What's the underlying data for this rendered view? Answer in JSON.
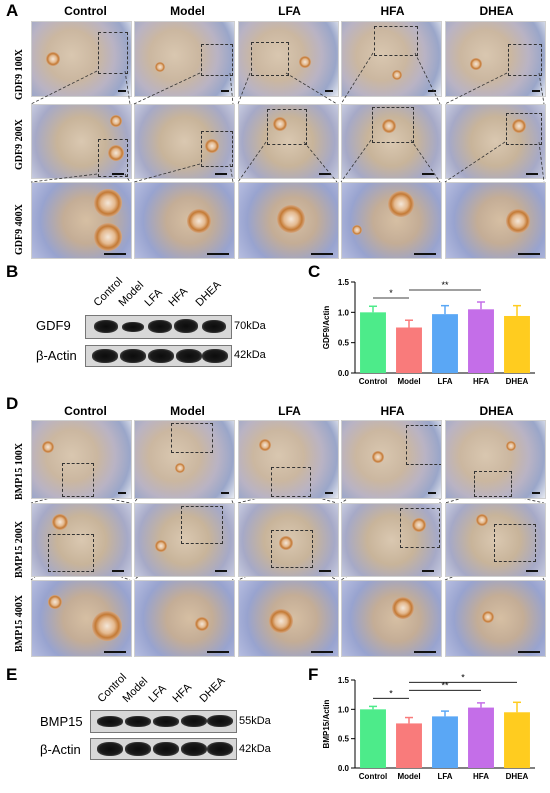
{
  "panels": {
    "A": "A",
    "B": "B",
    "C": "C",
    "D": "D",
    "E": "E",
    "F": "F"
  },
  "groups": [
    "Control",
    "Model",
    "LFA",
    "HFA",
    "DHEA"
  ],
  "panel_a": {
    "rows": [
      "GDF9 100X",
      "GDF9 200X",
      "GDF9 400X"
    ]
  },
  "panel_d": {
    "rows": [
      "BMP15 100X",
      "BMP15 200X",
      "BMP15 400X"
    ]
  },
  "panel_b": {
    "lanes": [
      "Control",
      "Model",
      "LFA",
      "HFA",
      "DHEA"
    ],
    "proteins": [
      "GDF9",
      "β-Actin"
    ],
    "sizes": [
      "70kDa",
      "42kDa"
    ]
  },
  "panel_e": {
    "lanes": [
      "Control",
      "Model",
      "LFA",
      "HFA",
      "DHEA"
    ],
    "proteins": [
      "BMP15",
      "β-Actin"
    ],
    "sizes": [
      "55kDa",
      "42kDa"
    ]
  },
  "chart_data": [
    {
      "id": "C",
      "type": "bar",
      "categories": [
        "Control",
        "Model",
        "LFA",
        "HFA",
        "DHEA"
      ],
      "values": [
        1.0,
        0.75,
        0.97,
        1.05,
        0.94
      ],
      "errors": [
        0.1,
        0.12,
        0.14,
        0.12,
        0.17
      ],
      "colors": [
        "#4deb8a",
        "#f97b7b",
        "#5aa7f5",
        "#c46ee8",
        "#ffcc1f"
      ],
      "ylabel": "GDF9/Actin",
      "ylim": [
        0.0,
        1.5
      ],
      "yticks": [
        "0.0",
        "0.5",
        "1.0",
        "1.5"
      ],
      "significance": [
        {
          "from": "Control",
          "to": "Model",
          "label": "*"
        },
        {
          "from": "Model",
          "to": "HFA",
          "label": "**"
        }
      ]
    },
    {
      "id": "F",
      "type": "bar",
      "categories": [
        "Control",
        "Model",
        "LFA",
        "HFA",
        "DHEA"
      ],
      "values": [
        1.0,
        0.76,
        0.88,
        1.03,
        0.95
      ],
      "errors": [
        0.05,
        0.1,
        0.09,
        0.08,
        0.17
      ],
      "colors": [
        "#4deb8a",
        "#f97b7b",
        "#5aa7f5",
        "#c46ee8",
        "#ffcc1f"
      ],
      "ylabel": "BMP15/Actin",
      "ylim": [
        0.0,
        1.5
      ],
      "yticks": [
        "0.0",
        "0.5",
        "1.0",
        "1.5"
      ],
      "significance": [
        {
          "from": "Control",
          "to": "Model",
          "label": "*"
        },
        {
          "from": "Model",
          "to": "HFA",
          "label": "**"
        },
        {
          "from": "Model",
          "to": "DHEA",
          "label": "*"
        }
      ]
    }
  ]
}
